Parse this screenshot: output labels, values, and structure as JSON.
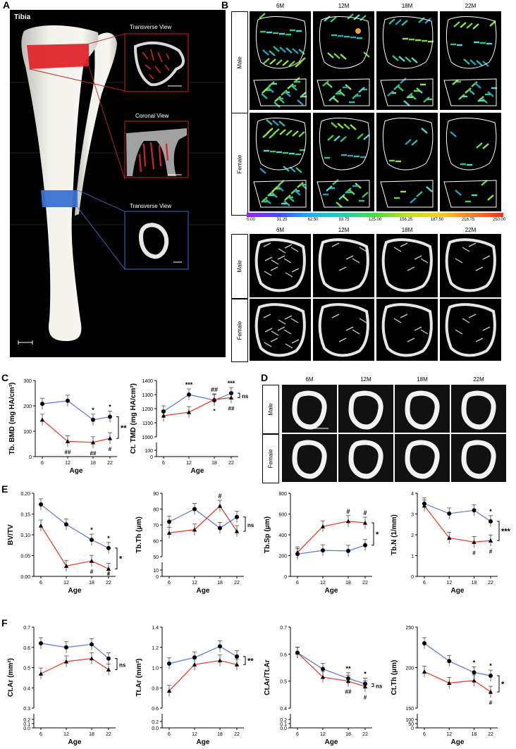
{
  "panel_labels": {
    "A": "A",
    "B": "B",
    "C": "C",
    "D": "D",
    "E": "E",
    "F": "F"
  },
  "panel_a": {
    "bone_label": "Tibia",
    "insets": [
      "Transverse View",
      "Coronal View",
      "Transverse View"
    ],
    "colors": {
      "red_region": "#e0262b",
      "blue_region": "#3a73d0"
    }
  },
  "panel_b": {
    "ages": [
      "6M",
      "12M",
      "18M",
      "22M"
    ],
    "sexes": [
      "Male",
      "Female"
    ],
    "colorbar_ticks": [
      "0.00",
      "31.25",
      "62.50",
      "93.75",
      "125.00",
      "156.25",
      "187.50",
      "218.75",
      "250.00"
    ]
  },
  "panel_d": {
    "ages": [
      "6M",
      "12M",
      "18M",
      "22M"
    ],
    "sexes": [
      "Male",
      "Female"
    ]
  },
  "series_colors": {
    "male": "#5b73e8",
    "female": "#e8331f"
  },
  "chart_data": [
    {
      "id": "tb_bmd",
      "type": "line",
      "panel": "C",
      "ylabel": "Tb. BMD (mg HA/cm³)",
      "xlabel": "Age",
      "x": [
        6,
        12,
        18,
        22
      ],
      "yticks_top": [
        "0",
        "100",
        "200",
        "300"
      ],
      "yticks_bottom": [],
      "ylim": [
        0,
        300
      ],
      "series": [
        {
          "values": [
            208,
            220,
            145,
            157
          ]
        },
        {
          "values": [
            145,
            60,
            56,
            72
          ]
        }
      ],
      "annotations": {
        "above": [
          "",
          "",
          "*",
          "*"
        ],
        "below": [
          "",
          "##",
          "##",
          "#"
        ]
      },
      "bracket": "**"
    },
    {
      "id": "ct_tmd",
      "type": "line",
      "panel": "C",
      "ylabel": "Ct. TMD (mg HA/cm³)",
      "xlabel": "Age",
      "x": [
        6,
        12,
        18,
        22
      ],
      "yticks_top": [
        "1000",
        "1100",
        "1200",
        "1300",
        "1400"
      ],
      "yticks_bottom": [
        "0",
        "100"
      ],
      "ylim": [
        1000,
        1400
      ],
      "series": [
        {
          "values": [
            1180,
            1300,
            1260,
            1310
          ]
        },
        {
          "values": [
            1150,
            1175,
            1265,
            1278
          ]
        }
      ],
      "annotations": {
        "above": [
          "",
          "***",
          "##",
          "***"
        ],
        "below": [
          "",
          "",
          "*",
          "##"
        ]
      },
      "bracket": "ns"
    },
    {
      "id": "bvtv",
      "type": "line",
      "panel": "E",
      "ylabel": "BV/TV",
      "xlabel": "Age",
      "x": [
        6,
        12,
        18,
        22
      ],
      "yticks_top": [
        "0.00",
        "0.05",
        "0.10",
        "0.15",
        "0.20"
      ],
      "yticks_bottom": [],
      "ylim": [
        0,
        0.2
      ],
      "series": [
        {
          "values": [
            0.173,
            0.125,
            0.088,
            0.068
          ]
        },
        {
          "values": [
            0.122,
            0.025,
            0.037,
            0.018
          ]
        }
      ],
      "annotations": {
        "above": [
          "",
          "",
          "*",
          "*"
        ],
        "below": [
          "",
          "",
          "#",
          "#"
        ]
      },
      "bracket": "*"
    },
    {
      "id": "tbth",
      "type": "line",
      "panel": "E",
      "ylabel": "Tb.Th (μm)",
      "xlabel": "Age",
      "x": [
        6,
        12,
        18,
        22
      ],
      "yticks_top": [
        "50",
        "60",
        "70",
        "80",
        "90"
      ],
      "yticks_bottom": [
        "0",
        "10"
      ],
      "ylim": [
        50,
        90
      ],
      "series": [
        {
          "values": [
            72,
            80,
            68,
            75
          ]
        },
        {
          "values": [
            65,
            67,
            82,
            66
          ]
        }
      ],
      "annotations": {
        "above": [
          "",
          "",
          "#",
          ""
        ],
        "below": [
          "",
          "",
          "",
          ""
        ]
      },
      "bracket": "ns"
    },
    {
      "id": "tbsp",
      "type": "line",
      "panel": "E",
      "ylabel": "Tb.Sp (μm)",
      "xlabel": "Age",
      "x": [
        6,
        12,
        18,
        22
      ],
      "yticks_top": [
        "0",
        "200",
        "400",
        "600",
        "800"
      ],
      "yticks_bottom": [],
      "ylim": [
        0,
        800
      ],
      "series": [
        {
          "values": [
            215,
            250,
            245,
            300
          ]
        },
        {
          "values": [
            230,
            480,
            530,
            515
          ]
        }
      ],
      "annotations": {
        "above": [
          "",
          "",
          "#",
          "#"
        ],
        "below": [
          "",
          "",
          "",
          ""
        ]
      },
      "bracket": "*"
    },
    {
      "id": "tbn",
      "type": "line",
      "panel": "E",
      "ylabel": "Tb.N (1/mm)",
      "xlabel": "Age",
      "x": [
        6,
        12,
        18,
        22
      ],
      "yticks_top": [
        "0",
        "1",
        "2",
        "3",
        "4"
      ],
      "yticks_bottom": [],
      "ylim": [
        0,
        4
      ],
      "series": [
        {
          "values": [
            3.5,
            3.02,
            3.18,
            2.65
          ]
        },
        {
          "values": [
            3.4,
            1.85,
            1.65,
            1.72
          ]
        }
      ],
      "annotations": {
        "above": [
          "",
          "",
          "",
          "*"
        ],
        "below": [
          "",
          "",
          "#",
          "#"
        ]
      },
      "bracket": "***"
    },
    {
      "id": "ctar",
      "type": "line",
      "panel": "F",
      "ylabel": "Ct.Ar (mm²)",
      "xlabel": "Age",
      "x": [
        6,
        12,
        18,
        22
      ],
      "yticks_top": [
        "0.3",
        "0.4",
        "0.5",
        "0.6",
        "0.7"
      ],
      "yticks_bottom": [
        "0.0",
        "0.1",
        "0.2"
      ],
      "ylim": [
        0.3,
        0.7
      ],
      "series": [
        {
          "values": [
            0.62,
            0.6,
            0.615,
            0.545
          ]
        },
        {
          "values": [
            0.47,
            0.53,
            0.545,
            0.49
          ]
        }
      ],
      "annotations": {
        "above": [
          "",
          "",
          "",
          ""
        ],
        "below": [
          "",
          "",
          "",
          ""
        ]
      },
      "bracket": "ns"
    },
    {
      "id": "tar",
      "type": "line",
      "panel": "F",
      "ylabel": "Tt.Ar (mm²)",
      "xlabel": "Age",
      "x": [
        6,
        12,
        18,
        22
      ],
      "yticks_top": [
        "0.6",
        "0.8",
        "1.0",
        "1.2",
        "1.4"
      ],
      "yticks_bottom": [
        "0.0",
        "0.2"
      ],
      "ylim": [
        0.6,
        1.4
      ],
      "series": [
        {
          "values": [
            1.04,
            1.1,
            1.21,
            1.11
          ]
        },
        {
          "values": [
            0.77,
            1.03,
            1.07,
            1.03
          ]
        }
      ],
      "annotations": {
        "above": [
          "",
          "",
          "",
          ""
        ],
        "below": [
          "",
          "",
          "",
          ""
        ]
      },
      "bracket": "**"
    },
    {
      "id": "ctar_ttar",
      "type": "line",
      "panel": "F",
      "ylabel": "Ct.Ar/Tt.Ar",
      "xlabel": "Age",
      "x": [
        6,
        12,
        18,
        22
      ],
      "yticks_top": [
        "0.4",
        "0.5",
        "0.6",
        "0.7"
      ],
      "yticks_bottom": [
        "0.0",
        "0.1",
        "0.2"
      ],
      "ylim": [
        0.4,
        0.7
      ],
      "series": [
        {
          "values": [
            0.605,
            0.545,
            0.51,
            0.49
          ]
        },
        {
          "values": [
            0.605,
            0.515,
            0.5,
            0.48
          ]
        }
      ],
      "annotations": {
        "above": [
          "",
          "",
          "**",
          "*"
        ],
        "below": [
          "",
          "",
          "##",
          "#"
        ]
      },
      "bracket": "ns"
    },
    {
      "id": "ctth",
      "type": "line",
      "panel": "F",
      "ylabel": "Ct.Th (μm)",
      "xlabel": "Age",
      "x": [
        6,
        12,
        18,
        22
      ],
      "yticks_top": [
        "150",
        "200",
        "250"
      ],
      "yticks_bottom": [
        "0",
        "50",
        "100"
      ],
      "ylim": [
        150,
        250
      ],
      "series": [
        {
          "values": [
            230,
            208,
            194,
            190
          ]
        },
        {
          "values": [
            195,
            181,
            184,
            170
          ]
        }
      ],
      "annotations": {
        "above": [
          "",
          "",
          "*",
          "*"
        ],
        "below": [
          "",
          "",
          "",
          "#"
        ]
      },
      "bracket": "*"
    }
  ]
}
